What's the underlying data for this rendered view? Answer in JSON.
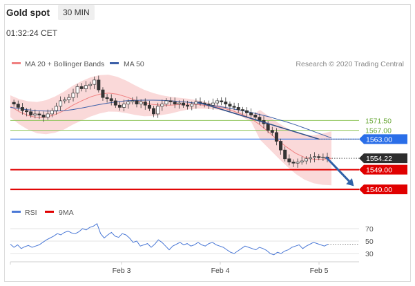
{
  "header": {
    "title": "Gold spot",
    "timeframe": "30 MIN",
    "time": "01:32:24 CET"
  },
  "colors": {
    "bollinger_fill": "#f9d2d2",
    "ma20": "#f08080",
    "ma50": "#3b5fa8",
    "support_green": "#8fc45a",
    "pivot_blue": "#2a6ee8",
    "support_red": "#e00000",
    "arrow": "#2f62a8",
    "rsi": "#4a78d6",
    "rsi_ma": "#e00000"
  },
  "chart_data": [
    {
      "type": "line",
      "subtype": "candlestick",
      "title": "",
      "legend": [
        {
          "name": "MA 20 + Bollinger Bands"
        },
        {
          "name": "MA 50"
        }
      ],
      "legend_position": "top-left",
      "source": "Research © 2020 Trading Central",
      "x_ticks": [
        "Feb 3",
        "Feb 4",
        "Feb 5"
      ],
      "ylim": [
        1535,
        1595
      ],
      "price_levels": [
        {
          "value": 1571.5,
          "label": "1571.50",
          "kind": "resistance"
        },
        {
          "value": 1567.0,
          "label": "1567.00",
          "kind": "resistance"
        },
        {
          "value": 1563.0,
          "label": "1563.00",
          "kind": "pivot"
        },
        {
          "value": 1554.22,
          "label": "1554.22",
          "kind": "last"
        },
        {
          "value": 1549.0,
          "label": "1549.00",
          "kind": "support"
        },
        {
          "value": 1540.0,
          "label": "1540.00",
          "kind": "support"
        }
      ],
      "series": [
        {
          "name": "MA 50",
          "values": [
            1577.5,
            1576.9,
            1576.4,
            1576.0,
            1575.8,
            1575.8,
            1576.0,
            1576.5,
            1577.2,
            1578.0,
            1578.8,
            1579.5,
            1580.1,
            1580.5,
            1580.7,
            1580.8,
            1580.8,
            1580.7,
            1580.5,
            1580.2,
            1579.8,
            1579.3,
            1578.8,
            1578.2,
            1577.5,
            1576.8,
            1576.0,
            1575.2,
            1574.2,
            1573.2,
            1572.0,
            1570.8,
            1569.5,
            1568.0,
            1566.5,
            1565.0,
            1563.5
          ]
        },
        {
          "name": "MA 20",
          "values": [
            1578.0,
            1575.5,
            1573.8,
            1572.8,
            1573.0,
            1574.2,
            1576.0,
            1578.5,
            1580.5,
            1582.3,
            1583.5,
            1584.0,
            1583.5,
            1582.3,
            1580.8,
            1579.5,
            1578.8,
            1578.5,
            1578.5,
            1578.8,
            1579.0,
            1578.8,
            1578.3,
            1577.8,
            1577.0,
            1575.8,
            1574.3,
            1572.3,
            1569.5,
            1566.0,
            1562.5,
            1559.3,
            1556.5,
            1554.6,
            1553.8,
            1553.8,
            1554.2
          ]
        }
      ],
      "candles": [
        1579.0,
        1577.5,
        1576.0,
        1575.5,
        1574.0,
        1574.5,
        1574.0,
        1573.0,
        1574.5,
        1576.0,
        1578.0,
        1580.5,
        1581.0,
        1582.0,
        1584.0,
        1587.0,
        1586.0,
        1587.5,
        1588.0,
        1590.0,
        1585.5,
        1582.0,
        1581.5,
        1580.5,
        1578.5,
        1577.5,
        1579.0,
        1580.0,
        1580.5,
        1579.0,
        1580.0,
        1578.5,
        1577.0,
        1574.5,
        1578.0,
        1579.0,
        1580.5,
        1580.0,
        1579.0,
        1579.5,
        1578.5,
        1578.0,
        1579.0,
        1580.0,
        1579.5,
        1579.0,
        1578.5,
        1579.5,
        1580.5,
        1580.0,
        1579.0,
        1578.0,
        1577.5,
        1576.5,
        1576.0,
        1575.0,
        1574.0,
        1573.0,
        1571.5,
        1570.0,
        1567.0,
        1566.0,
        1562.0,
        1558.0,
        1554.0,
        1552.5,
        1552.0,
        1552.5,
        1553.0,
        1554.0,
        1554.5,
        1555.0,
        1554.5,
        1554.8,
        1554.2
      ],
      "trendline": [
        {
          "x": 0.535,
          "y": 1580.0
        },
        {
          "x": 0.885,
          "y": 1563.0
        }
      ],
      "projection_arrow": [
        {
          "x": 0.905,
          "y": 1554.8
        },
        {
          "x": 0.985,
          "y": 1541.5
        }
      ]
    },
    {
      "type": "line",
      "title": "",
      "legend": [
        {
          "name": "RSI"
        },
        {
          "name": "9MA"
        }
      ],
      "legend_position": "top-left",
      "ylim": [
        20,
        80
      ],
      "y_ticks": [
        70,
        50,
        30
      ],
      "series": [
        {
          "name": "RSI",
          "values": [
            45,
            40,
            44,
            38,
            41,
            43,
            40,
            42,
            44,
            48,
            52,
            55,
            58,
            62,
            60,
            64,
            66,
            63,
            62,
            65,
            70,
            68,
            72,
            74,
            78,
            62,
            55,
            60,
            64,
            58,
            56,
            62,
            60,
            55,
            48,
            50,
            42,
            44,
            46,
            40,
            45,
            52,
            48,
            42,
            36,
            42,
            45,
            48,
            44,
            46,
            42,
            44,
            48,
            44,
            42,
            46,
            48,
            44,
            42,
            40,
            36,
            32,
            30,
            34,
            38,
            42,
            40,
            38,
            36,
            40,
            38,
            35,
            30,
            28,
            32,
            30,
            34,
            36,
            40,
            42,
            44,
            38,
            42,
            45,
            48,
            46,
            44,
            42,
            45
          ]
        }
      ]
    }
  ]
}
